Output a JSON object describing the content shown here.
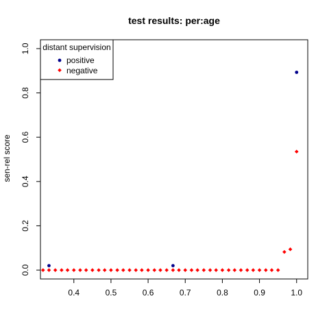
{
  "chart_data": {
    "type": "scatter",
    "title": "test results: per:age",
    "xlabel": "",
    "ylabel": "sen-rel score",
    "xlim": [
      0.31,
      1.03
    ],
    "ylim": [
      -0.04,
      1.04
    ],
    "xticks": [
      "0.4",
      "0.5",
      "0.6",
      "0.7",
      "0.8",
      "0.9",
      "1.0"
    ],
    "yticks": [
      "0.0",
      "0.2",
      "0.4",
      "0.6",
      "0.8",
      "1.0"
    ],
    "grid": false,
    "legend": {
      "title": "distant supervision",
      "placement": "top-left",
      "entries": [
        "positive",
        "negative"
      ]
    },
    "series": [
      {
        "name": "positive",
        "color": "#00008b",
        "marker": "circle",
        "points": [
          [
            0.333,
            0.02
          ],
          [
            0.667,
            0.02
          ],
          [
            1.0,
            0.893
          ]
        ]
      },
      {
        "name": "negative",
        "color": "#ff0000",
        "marker": "diamond",
        "points": [
          [
            0.317,
            0.0
          ],
          [
            0.333,
            0.0
          ],
          [
            0.35,
            0.0
          ],
          [
            0.367,
            0.0
          ],
          [
            0.383,
            0.0
          ],
          [
            0.4,
            0.0
          ],
          [
            0.417,
            0.0
          ],
          [
            0.433,
            0.0
          ],
          [
            0.45,
            0.0
          ],
          [
            0.467,
            0.0
          ],
          [
            0.483,
            0.0
          ],
          [
            0.5,
            0.0
          ],
          [
            0.517,
            0.0
          ],
          [
            0.533,
            0.0
          ],
          [
            0.55,
            0.0
          ],
          [
            0.567,
            0.0
          ],
          [
            0.583,
            0.0
          ],
          [
            0.6,
            0.0
          ],
          [
            0.617,
            0.0
          ],
          [
            0.633,
            0.0
          ],
          [
            0.65,
            0.0
          ],
          [
            0.667,
            0.0
          ],
          [
            0.683,
            0.0
          ],
          [
            0.7,
            0.0
          ],
          [
            0.717,
            0.0
          ],
          [
            0.733,
            0.0
          ],
          [
            0.75,
            0.0
          ],
          [
            0.767,
            0.0
          ],
          [
            0.783,
            0.0
          ],
          [
            0.8,
            0.0
          ],
          [
            0.817,
            0.0
          ],
          [
            0.833,
            0.0
          ],
          [
            0.85,
            0.0
          ],
          [
            0.867,
            0.0
          ],
          [
            0.883,
            0.0
          ],
          [
            0.9,
            0.0
          ],
          [
            0.917,
            0.0
          ],
          [
            0.933,
            0.0
          ],
          [
            0.95,
            0.0
          ],
          [
            0.967,
            0.082
          ],
          [
            0.983,
            0.094
          ],
          [
            1.0,
            0.535
          ]
        ]
      }
    ]
  }
}
